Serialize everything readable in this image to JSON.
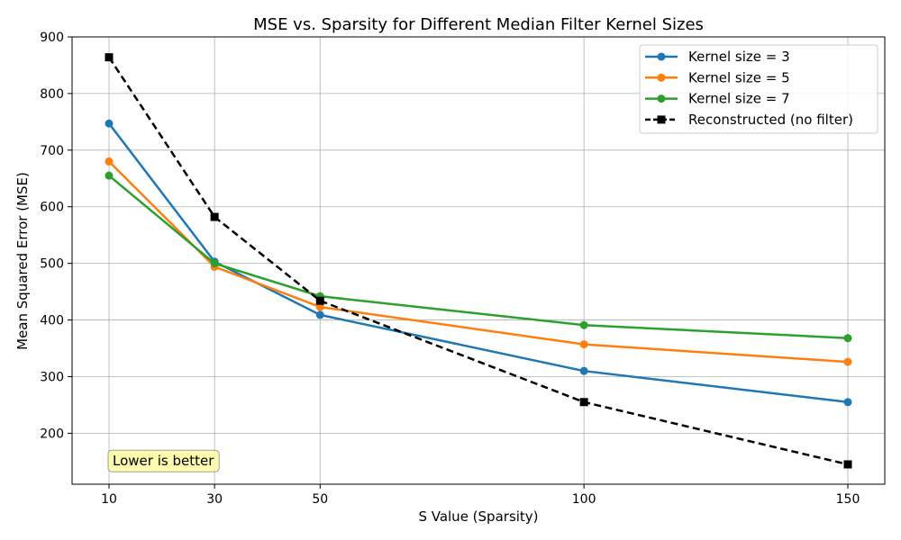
{
  "chart_data": {
    "type": "line",
    "title": "MSE vs. Sparsity for Different Median Filter Kernel Sizes",
    "xlabel": "S Value (Sparsity)",
    "ylabel": "Mean Squared Error (MSE)",
    "x": [
      10,
      30,
      50,
      100,
      150
    ],
    "xticks": [
      10,
      30,
      50,
      100,
      150
    ],
    "yticks": [
      200,
      300,
      400,
      500,
      600,
      700,
      800,
      900
    ],
    "xlim": [
      3,
      157
    ],
    "ylim": [
      110,
      900
    ],
    "grid": true,
    "legend_position": "top-right",
    "series": [
      {
        "name": "Kernel size = 3",
        "color": "#1f77b4",
        "marker": "circle",
        "dash": "solid",
        "values": [
          747,
          503,
          409,
          310,
          255
        ]
      },
      {
        "name": "Kernel size = 5",
        "color": "#ff7f0e",
        "marker": "circle",
        "dash": "solid",
        "values": [
          680,
          494,
          423,
          357,
          326
        ]
      },
      {
        "name": "Kernel size = 7",
        "color": "#2ca02c",
        "marker": "circle",
        "dash": "solid",
        "values": [
          655,
          500,
          442,
          391,
          368
        ]
      },
      {
        "name": "Reconstructed (no filter)",
        "color": "#000000",
        "marker": "square",
        "dash": "dashed",
        "values": [
          864,
          582,
          434,
          255,
          145
        ]
      }
    ],
    "annotation": {
      "text": "Lower is better",
      "x": 10,
      "y": 151,
      "bg": "#fffaa0"
    }
  }
}
